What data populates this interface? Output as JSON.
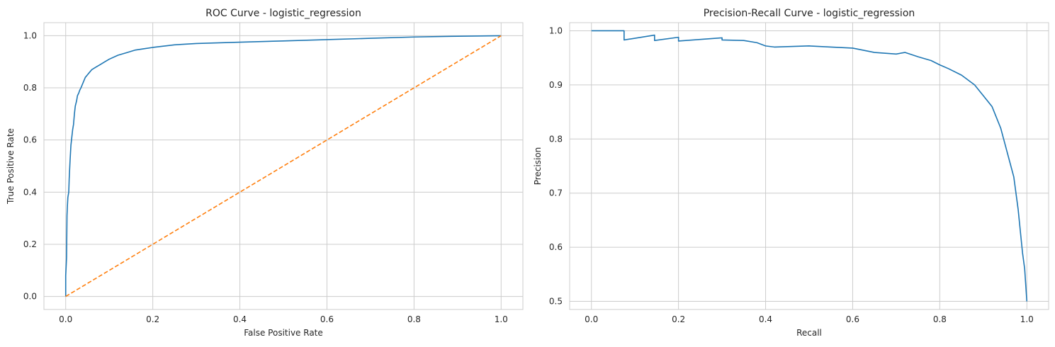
{
  "chart_data": [
    {
      "type": "line",
      "title": "ROC Curve - logistic_regression",
      "xlabel": "False Positive Rate",
      "ylabel": "True Positive Rate",
      "xlim": [
        -0.05,
        1.05
      ],
      "ylim": [
        -0.05,
        1.05
      ],
      "xticks": [
        "0.0",
        "0.2",
        "0.4",
        "0.6",
        "0.8",
        "1.0"
      ],
      "yticks": [
        "0.0",
        "0.2",
        "0.4",
        "0.6",
        "0.8",
        "1.0"
      ],
      "grid": true,
      "colors": [
        "#1f77b4",
        "#ff7f0e"
      ],
      "series": [
        {
          "style": "solid",
          "x": [
            0.0,
            0.0,
            0.002,
            0.003,
            0.004,
            0.005,
            0.007,
            0.008,
            0.01,
            0.011,
            0.012,
            0.014,
            0.016,
            0.018,
            0.02,
            0.022,
            0.025,
            0.027,
            0.03,
            0.032,
            0.035,
            0.04,
            0.045,
            0.05,
            0.055,
            0.06,
            0.07,
            0.08,
            0.09,
            0.1,
            0.12,
            0.14,
            0.16,
            0.18,
            0.2,
            0.25,
            0.3,
            0.4,
            0.5,
            0.6,
            0.7,
            0.8,
            0.9,
            1.0
          ],
          "y": [
            0.0,
            0.08,
            0.15,
            0.31,
            0.35,
            0.38,
            0.4,
            0.45,
            0.52,
            0.55,
            0.58,
            0.61,
            0.64,
            0.66,
            0.7,
            0.73,
            0.75,
            0.77,
            0.78,
            0.79,
            0.8,
            0.82,
            0.84,
            0.85,
            0.86,
            0.87,
            0.88,
            0.89,
            0.9,
            0.91,
            0.925,
            0.935,
            0.945,
            0.95,
            0.955,
            0.965,
            0.97,
            0.975,
            0.98,
            0.985,
            0.99,
            0.995,
            0.998,
            1.0
          ]
        },
        {
          "style": "dashed",
          "x": [
            0.0,
            1.0
          ],
          "y": [
            0.0,
            1.0
          ]
        }
      ]
    },
    {
      "type": "line",
      "title": "Precision-Recall Curve - logistic_regression",
      "xlabel": "Recall",
      "ylabel": "Precision",
      "xlim": [
        -0.05,
        1.05
      ],
      "ylim": [
        0.485,
        1.015
      ],
      "xticks": [
        "0.0",
        "0.2",
        "0.4",
        "0.6",
        "0.8",
        "1.0"
      ],
      "yticks": [
        "0.5",
        "0.6",
        "0.7",
        "0.8",
        "0.9",
        "1.0"
      ],
      "grid": true,
      "colors": [
        "#1f77b4"
      ],
      "series": [
        {
          "style": "solid",
          "x": [
            0.0,
            0.075,
            0.075,
            0.145,
            0.145,
            0.2,
            0.2,
            0.3,
            0.3,
            0.35,
            0.38,
            0.4,
            0.42,
            0.5,
            0.55,
            0.6,
            0.65,
            0.7,
            0.72,
            0.75,
            0.78,
            0.8,
            0.82,
            0.85,
            0.88,
            0.9,
            0.92,
            0.93,
            0.94,
            0.95,
            0.96,
            0.97,
            0.975,
            0.98,
            0.985,
            0.99,
            0.995,
            1.0
          ],
          "y": [
            1.0,
            1.0,
            0.983,
            0.992,
            0.982,
            0.988,
            0.981,
            0.987,
            0.983,
            0.982,
            0.978,
            0.972,
            0.97,
            0.972,
            0.97,
            0.968,
            0.96,
            0.957,
            0.96,
            0.952,
            0.945,
            0.937,
            0.93,
            0.918,
            0.9,
            0.88,
            0.86,
            0.84,
            0.82,
            0.79,
            0.76,
            0.73,
            0.7,
            0.67,
            0.63,
            0.59,
            0.56,
            0.5
          ]
        }
      ]
    }
  ]
}
